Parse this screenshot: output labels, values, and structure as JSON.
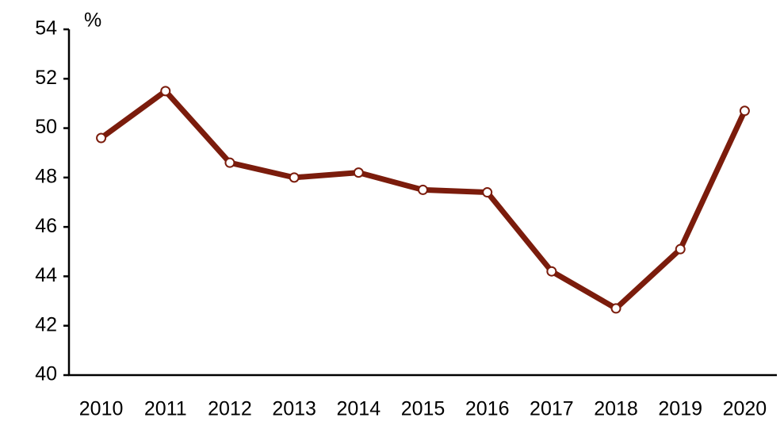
{
  "chart_data": {
    "type": "line",
    "y_label": "%",
    "categories": [
      "2010",
      "2011",
      "2012",
      "2013",
      "2014",
      "2015",
      "2016",
      "2017",
      "2018",
      "2019",
      "2020"
    ],
    "values": [
      49.6,
      51.5,
      48.6,
      48.0,
      48.2,
      47.5,
      47.4,
      44.2,
      42.7,
      45.1,
      50.7
    ],
    "color": "#7b1c0c",
    "ylim": [
      40,
      54
    ],
    "yticks": [
      40,
      42,
      44,
      46,
      48,
      50,
      52,
      54
    ],
    "grid": false
  }
}
